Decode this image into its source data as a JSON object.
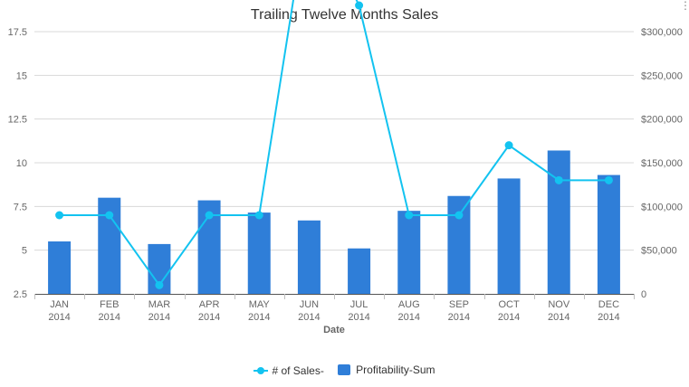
{
  "chart_data": {
    "type": "bar",
    "title": "Trailing Twelve Months Sales",
    "xlabel": "Date",
    "categories": [
      [
        "JAN",
        "2014"
      ],
      [
        "FEB",
        "2014"
      ],
      [
        "MAR",
        "2014"
      ],
      [
        "APR",
        "2014"
      ],
      [
        "MAY",
        "2014"
      ],
      [
        "JUN",
        "2014"
      ],
      [
        "JUL",
        "2014"
      ],
      [
        "AUG",
        "2014"
      ],
      [
        "SEP",
        "2014"
      ],
      [
        "OCT",
        "2014"
      ],
      [
        "NOV",
        "2014"
      ],
      [
        "DEC",
        "2014"
      ]
    ],
    "y_left": {
      "ylim": [
        2.5,
        17.5
      ],
      "ticks": [
        "2.5",
        "5",
        "7.5",
        "10",
        "12.5",
        "15",
        "17.5"
      ],
      "tick_values": [
        2.5,
        5,
        7.5,
        10,
        12.5,
        15,
        17.5
      ]
    },
    "y_right": {
      "ylim": [
        0,
        300000
      ],
      "ticks": [
        "0",
        "$50,000",
        "$100,000",
        "$150,000",
        "$200,000",
        "$250,000",
        "$300,000"
      ],
      "tick_values": [
        0,
        50000,
        100000,
        150000,
        200000,
        250000,
        300000
      ]
    },
    "grid": true,
    "legend_position": "bottom-center",
    "series": [
      {
        "name": "# of Sales-",
        "type": "line",
        "axis": "left",
        "color": "#13c3f0",
        "values": [
          7,
          7,
          3,
          7,
          7,
          25,
          19,
          7,
          7,
          11,
          9,
          9
        ]
      },
      {
        "name": "Profitability-Sum",
        "type": "bar",
        "axis": "right",
        "color": "#2f7ed8",
        "values": [
          60000,
          110000,
          57000,
          107000,
          93000,
          84000,
          52000,
          95000,
          112000,
          132000,
          164000,
          136000
        ]
      }
    ]
  },
  "icons": {
    "menu": "menu-icon"
  }
}
